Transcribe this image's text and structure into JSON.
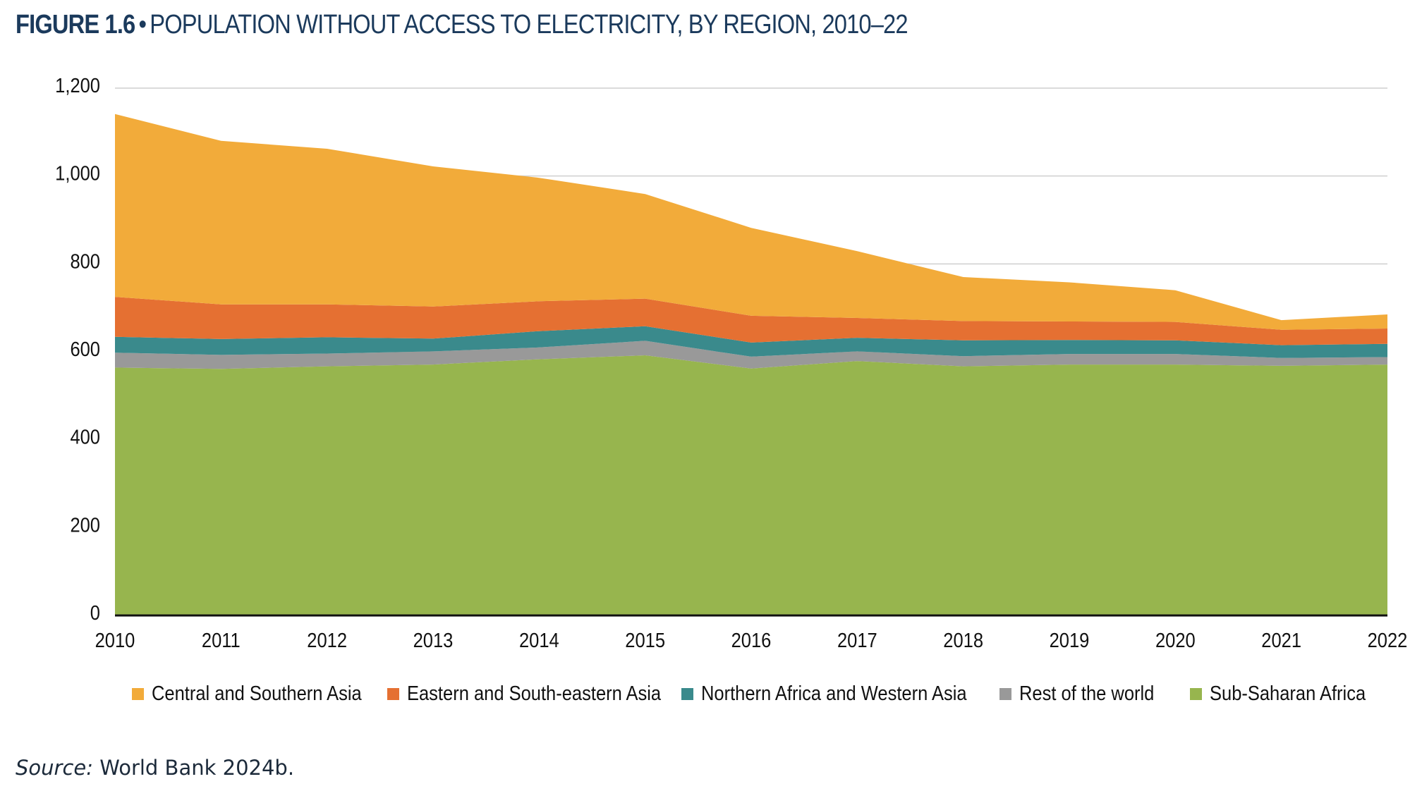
{
  "figure": {
    "label": "FIGURE 1.6",
    "bullet": "•",
    "title": "POPULATION WITHOUT ACCESS TO ELECTRICITY, BY REGION, 2010–22"
  },
  "source": {
    "prefix": "Source:",
    "text": "World Bank 2024b."
  },
  "chart_data": {
    "type": "area",
    "stacked": true,
    "x": [
      "2010",
      "2011",
      "2012",
      "2013",
      "2014",
      "2015",
      "2016",
      "2017",
      "2018",
      "2019",
      "2020",
      "2021",
      "2022"
    ],
    "ylim": [
      0,
      1200
    ],
    "yticks": [
      0,
      200,
      400,
      600,
      800,
      1000,
      1200
    ],
    "ytick_labels": [
      "0",
      "200",
      "400",
      "600",
      "800",
      "1,000",
      "1,200"
    ],
    "grid": true,
    "legend_position": "bottom",
    "series": [
      {
        "name": "Sub-Saharan Africa",
        "color": "#97b54e",
        "values": [
          564,
          561,
          567,
          571,
          583,
          592,
          562,
          579,
          567,
          571,
          571,
          568,
          571
        ]
      },
      {
        "name": "Rest of the world",
        "color": "#999999",
        "values": [
          34,
          32,
          29,
          30,
          27,
          33,
          27,
          22,
          23,
          24,
          24,
          18,
          17
        ]
      },
      {
        "name": "Northern Africa and Western Asia",
        "color": "#3a8a8c",
        "values": [
          36,
          36,
          37,
          29,
          37,
          33,
          32,
          31,
          36,
          32,
          31,
          29,
          30
        ]
      },
      {
        "name": "Eastern and South-eastern Asia",
        "color": "#e57032",
        "values": [
          91,
          79,
          75,
          73,
          68,
          63,
          61,
          45,
          44,
          42,
          42,
          35,
          35
        ]
      },
      {
        "name": "Central and Southern Asia",
        "color": "#f2ab3a",
        "values": [
          416,
          372,
          354,
          319,
          281,
          238,
          200,
          152,
          100,
          89,
          72,
          22,
          32
        ]
      }
    ],
    "legend_order": [
      "Central and Southern Asia",
      "Eastern and South-eastern Asia",
      "Northern Africa and Western Asia",
      "Rest of the world",
      "Sub-Saharan Africa"
    ]
  }
}
